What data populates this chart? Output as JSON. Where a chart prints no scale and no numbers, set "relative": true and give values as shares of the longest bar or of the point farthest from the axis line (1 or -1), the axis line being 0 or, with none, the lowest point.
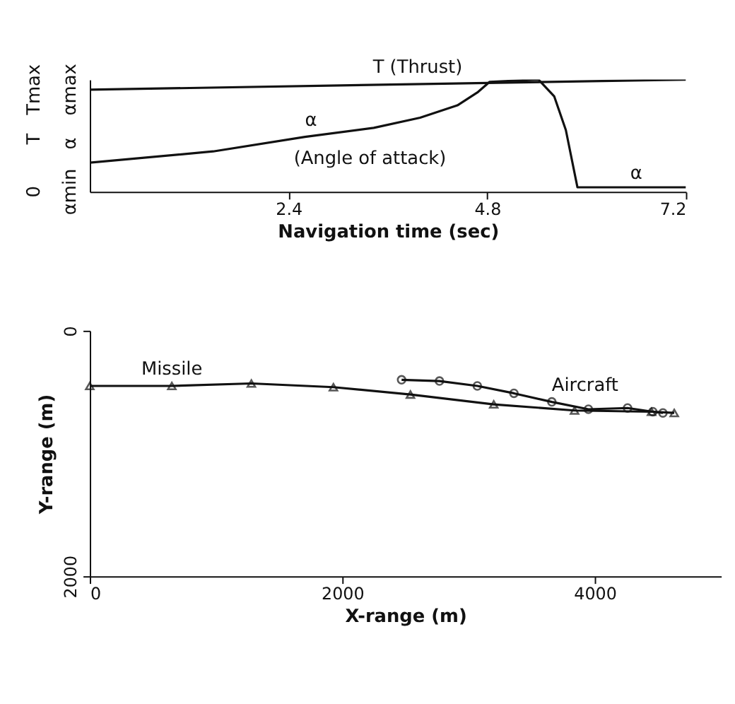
{
  "chart_data": [
    {
      "type": "line",
      "relative": true,
      "xlabel": "Navigation time (sec)",
      "xlim": [
        0,
        7.2
      ],
      "xticks": [
        2.4,
        4.8,
        7.2
      ],
      "grid": false,
      "marker": "none",
      "series": [
        {
          "name": "T  (Thrust)",
          "color": "#111111",
          "x": [
            0,
            7.2
          ],
          "values": [
            0.91,
            1.0
          ]
        },
        {
          "name": "α",
          "color": "#111111",
          "x": [
            0,
            1.49,
            2.6,
            3.43,
            3.99,
            4.44,
            4.69,
            4.83,
            5.42,
            5.61,
            5.75,
            5.89,
            7.2
          ],
          "values": [
            0.26,
            0.36,
            0.49,
            0.57,
            0.66,
            0.77,
            0.89,
            0.98,
            1.0,
            0.85,
            0.55,
            0.04,
            0.04
          ]
        }
      ],
      "annotations": [
        "0",
        "T",
        "Tmax",
        "αmin",
        "α",
        "αmax",
        "(Angle of attack)",
        {
          "text": "α",
          "x": 6.6,
          "y": 0.04
        }
      ]
    },
    {
      "type": "line",
      "xlabel": "X-range (m)",
      "ylabel": "Y-range (m)",
      "xlim": [
        0,
        5000
      ],
      "xticks": [
        0,
        2000,
        4000
      ],
      "ylim": [
        2000,
        0
      ],
      "yticks": [
        0,
        2000
      ],
      "grid": false,
      "series": [
        {
          "name": "Missile",
          "color": "#111111",
          "marker": "triangle",
          "x": [
            0,
            650,
            1280,
            1930,
            2540,
            3200,
            3840,
            4450,
            4630
          ],
          "values": [
            450,
            450,
            430,
            460,
            520,
            600,
            650,
            660,
            670
          ]
        },
        {
          "name": "Aircraft",
          "color": "#111111",
          "marker": "circle",
          "x": [
            2470,
            2770,
            3070,
            3360,
            3660,
            3950,
            4260,
            4460,
            4540
          ],
          "values": [
            400,
            410,
            450,
            510,
            580,
            640,
            630,
            660,
            670
          ]
        }
      ]
    }
  ]
}
